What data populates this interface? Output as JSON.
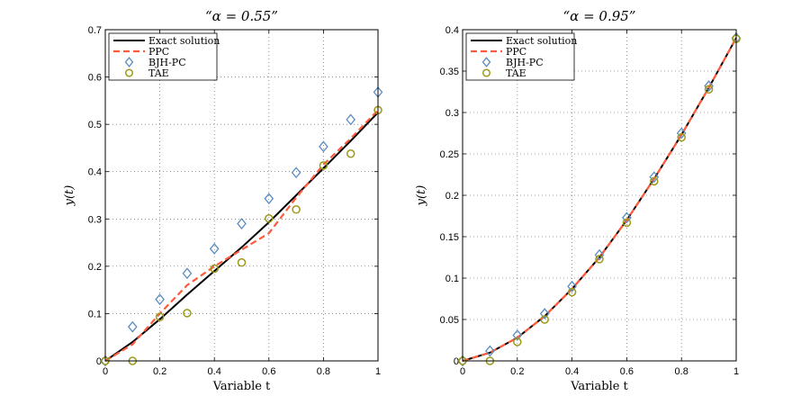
{
  "chart_data": [
    {
      "type": "line",
      "title": "“α = 0.55”",
      "xlabel": "Variable t",
      "ylabel": "y(t)",
      "xlim": [
        0,
        1
      ],
      "ylim": [
        0,
        0.7
      ],
      "xticks": [
        0,
        0.2,
        0.4,
        0.6,
        0.8,
        1
      ],
      "xtick_labels": [
        "0",
        "0.2",
        "0.4",
        "0.6",
        "0.8",
        "1"
      ],
      "yticks": [
        0,
        0.1,
        0.2,
        0.3,
        0.4,
        0.5,
        0.6,
        0.7
      ],
      "ytick_labels": [
        "0",
        "0.1",
        "0.2",
        "0.3",
        "0.4",
        "0.5",
        "0.6",
        "0.7"
      ],
      "grid": true,
      "legend_position": "top-left",
      "series": [
        {
          "name": "Exact solution",
          "style": "solid-line",
          "color": "#000000",
          "x": [
            0,
            0.1,
            0.2,
            0.3,
            0.4,
            0.5,
            0.6,
            0.7,
            0.8,
            0.9,
            1.0
          ],
          "y": [
            0,
            0.04,
            0.088,
            0.14,
            0.19,
            0.24,
            0.293,
            0.35,
            0.407,
            0.465,
            0.525
          ]
        },
        {
          "name": "PPC",
          "style": "dashed-line",
          "color": "#ff5a3c",
          "x": [
            0,
            0.1,
            0.2,
            0.3,
            0.4,
            0.5,
            0.6,
            0.7,
            0.8,
            0.9,
            1.0
          ],
          "y": [
            0,
            0.035,
            0.1,
            0.16,
            0.2,
            0.235,
            0.27,
            0.345,
            0.415,
            0.47,
            0.53
          ]
        },
        {
          "name": "BJH-PC",
          "style": "diamond-marker",
          "color": "#5b8cbf",
          "x": [
            0,
            0.1,
            0.2,
            0.3,
            0.4,
            0.5,
            0.6,
            0.7,
            0.8,
            0.9,
            1.0
          ],
          "y": [
            0,
            0.072,
            0.13,
            0.185,
            0.237,
            0.29,
            0.343,
            0.398,
            0.453,
            0.51,
            0.568
          ]
        },
        {
          "name": "TAE",
          "style": "circle-marker",
          "color": "#9c9a18",
          "x": [
            0,
            0.1,
            0.2,
            0.3,
            0.4,
            0.5,
            0.6,
            0.7,
            0.8,
            0.9,
            1.0
          ],
          "y": [
            0,
            0,
            0.093,
            0.101,
            0.195,
            0.208,
            0.301,
            0.32,
            0.413,
            0.438,
            0.53
          ]
        }
      ]
    },
    {
      "type": "line",
      "title": "“α = 0.95”",
      "xlabel": "Variable t",
      "ylabel": "y(t)",
      "xlim": [
        0,
        1
      ],
      "ylim": [
        0,
        0.4
      ],
      "xticks": [
        0,
        0.2,
        0.4,
        0.6,
        0.8,
        1
      ],
      "xtick_labels": [
        "0",
        "0.2",
        "0.4",
        "0.6",
        "0.8",
        "1"
      ],
      "yticks": [
        0,
        0.05,
        0.1,
        0.15,
        0.2,
        0.25,
        0.3,
        0.35,
        0.4
      ],
      "ytick_labels": [
        "0",
        "0.05",
        "0.1",
        "0.15",
        "0.2",
        "0.25",
        "0.3",
        "0.35",
        "0.4"
      ],
      "grid": true,
      "legend_position": "top-left",
      "series": [
        {
          "name": "Exact solution",
          "style": "solid-line",
          "color": "#000000",
          "x": [
            0,
            0.1,
            0.2,
            0.3,
            0.4,
            0.5,
            0.6,
            0.7,
            0.8,
            0.9,
            1.0
          ],
          "y": [
            0,
            0.01,
            0.028,
            0.054,
            0.087,
            0.125,
            0.17,
            0.22,
            0.273,
            0.33,
            0.39
          ]
        },
        {
          "name": "PPC",
          "style": "dashed-line",
          "color": "#ff5a3c",
          "x": [
            0,
            0.1,
            0.2,
            0.3,
            0.4,
            0.5,
            0.6,
            0.7,
            0.8,
            0.9,
            1.0
          ],
          "y": [
            0,
            0.01,
            0.028,
            0.054,
            0.087,
            0.125,
            0.17,
            0.22,
            0.273,
            0.33,
            0.39
          ]
        },
        {
          "name": "BJH-PC",
          "style": "diamond-marker",
          "color": "#5b8cbf",
          "x": [
            0,
            0.1,
            0.2,
            0.3,
            0.4,
            0.5,
            0.6,
            0.7,
            0.8,
            0.9,
            1.0
          ],
          "y": [
            0,
            0.012,
            0.031,
            0.057,
            0.09,
            0.128,
            0.173,
            0.222,
            0.275,
            0.332,
            0.39
          ]
        },
        {
          "name": "TAE",
          "style": "circle-marker",
          "color": "#9c9a18",
          "x": [
            0,
            0.1,
            0.2,
            0.3,
            0.4,
            0.5,
            0.6,
            0.7,
            0.8,
            0.9,
            1.0
          ],
          "y": [
            0,
            0,
            0.023,
            0.05,
            0.083,
            0.123,
            0.167,
            0.217,
            0.27,
            0.328,
            0.389
          ]
        }
      ]
    }
  ]
}
